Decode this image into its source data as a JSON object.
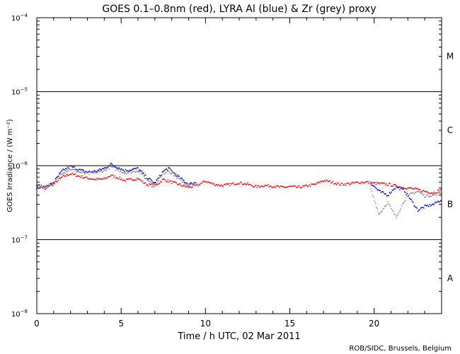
{
  "chart_data": {
    "type": "scatter",
    "title": "GOES 0.1–0.8nm (red), LYRA Al (blue) & Zr (grey) proxy",
    "xlabel": "Time / h UTC, 02 Mar 2011",
    "ylabel": "GOES Irradiance / (W m⁻²)",
    "xlim": [
      0,
      24
    ],
    "ylim": [
      1e-08,
      0.0001
    ],
    "yscale": "log",
    "x_ticks": [
      0,
      5,
      10,
      15,
      20
    ],
    "x_tick_labels": [
      "0",
      "5",
      "10",
      "15",
      "20"
    ],
    "y_ticks": [
      {
        "base": "10",
        "exp": "−8",
        "value": 1e-08
      },
      {
        "base": "10",
        "exp": "−7",
        "value": 1e-07
      },
      {
        "base": "10",
        "exp": "−6",
        "value": 1e-06
      },
      {
        "base": "10",
        "exp": "−5",
        "value": 1e-05
      },
      {
        "base": "10",
        "exp": "−4",
        "value": 0.0001
      }
    ],
    "flare_class_lines": [
      1e-07,
      1e-06,
      1e-05
    ],
    "flare_classes": [
      {
        "label": "A",
        "value": 3e-08
      },
      {
        "label": "B",
        "value": 3e-07
      },
      {
        "label": "C",
        "value": 3e-06
      },
      {
        "label": "M",
        "value": 3e-05
      }
    ],
    "series": [
      {
        "name": "GOES 0.1–0.8nm",
        "color": "#ff0000",
        "points": [
          [
            0,
            5e-07
          ],
          [
            0.5,
            5.2e-07
          ],
          [
            1,
            5.6e-07
          ],
          [
            1.5,
            7e-07
          ],
          [
            2,
            7.8e-07
          ],
          [
            2.5,
            7.2e-07
          ],
          [
            3,
            6.8e-07
          ],
          [
            3.5,
            6.5e-07
          ],
          [
            4,
            6.6e-07
          ],
          [
            4.4,
            7.4e-07
          ],
          [
            4.8,
            6.9e-07
          ],
          [
            5.2,
            6.3e-07
          ],
          [
            5.6,
            6.5e-07
          ],
          [
            6,
            6.7e-07
          ],
          [
            6.5,
            5.6e-07
          ],
          [
            7,
            5.3e-07
          ],
          [
            7.5,
            6.5e-07
          ],
          [
            8,
            6e-07
          ],
          [
            8.5,
            5.5e-07
          ],
          [
            9,
            5.1e-07
          ],
          [
            9.5,
            5.4e-07
          ],
          [
            10,
            6.2e-07
          ],
          [
            10.5,
            5.6e-07
          ],
          [
            11,
            5.4e-07
          ],
          [
            11.5,
            5.6e-07
          ],
          [
            12,
            5.9e-07
          ],
          [
            12.5,
            5.6e-07
          ],
          [
            13,
            5.2e-07
          ],
          [
            13.5,
            5.4e-07
          ],
          [
            14,
            5.3e-07
          ],
          [
            14.5,
            5.1e-07
          ],
          [
            15,
            5.2e-07
          ],
          [
            15.5,
            5.1e-07
          ],
          [
            16,
            5.3e-07
          ],
          [
            16.5,
            5.6e-07
          ],
          [
            17,
            6.3e-07
          ],
          [
            17.5,
            6e-07
          ],
          [
            18,
            5.6e-07
          ],
          [
            18.5,
            5.7e-07
          ],
          [
            19,
            5.9e-07
          ],
          [
            19.5,
            6e-07
          ],
          [
            20,
            5.8e-07
          ],
          [
            20.5,
            5.7e-07
          ],
          [
            21,
            5.5e-07
          ],
          [
            21.5,
            5.2e-07
          ],
          [
            22,
            5e-07
          ],
          [
            22.5,
            4.8e-07
          ],
          [
            23,
            4.5e-07
          ],
          [
            23.5,
            4.3e-07
          ],
          [
            24,
            4.7e-07
          ]
        ]
      },
      {
        "name": "LYRA Al proxy",
        "color": "#0000c8",
        "points": [
          [
            0,
            5.5e-07
          ],
          [
            0.5,
            5e-07
          ],
          [
            1,
            6e-07
          ],
          [
            1.5,
            8.5e-07
          ],
          [
            2,
            9.8e-07
          ],
          [
            2.5,
            8.8e-07
          ],
          [
            3,
            8.2e-07
          ],
          [
            3.5,
            8.4e-07
          ],
          [
            4,
            9.2e-07
          ],
          [
            4.4,
            1.05e-06
          ],
          [
            4.8,
            9.5e-07
          ],
          [
            5.2,
            8.6e-07
          ],
          [
            5.6,
            8.8e-07
          ],
          [
            6,
            9.2e-07
          ],
          [
            6.5,
            7e-07
          ],
          [
            7,
            5.8e-07
          ],
          [
            7.5,
            8.4e-07
          ],
          [
            7.8,
            9.2e-07
          ],
          [
            8.5,
            6.8e-07
          ],
          [
            9,
            5.6e-07
          ],
          [
            9.5,
            6e-07
          ],
          [
            19.8,
            5.8e-07
          ],
          [
            20.3,
            4.5e-07
          ],
          [
            20.8,
            4e-07
          ],
          [
            21.3,
            5.2e-07
          ],
          [
            21.8,
            4.6e-07
          ],
          [
            22.2,
            3.4e-07
          ],
          [
            22.6,
            2.5e-07
          ],
          [
            23,
            2.8e-07
          ],
          [
            23.5,
            3e-07
          ],
          [
            24,
            3.5e-07
          ]
        ]
      },
      {
        "name": "LYRA Zr proxy",
        "color": "#888888",
        "points": [
          [
            0,
            5.3e-07
          ],
          [
            0.5,
            5e-07
          ],
          [
            1,
            5.8e-07
          ],
          [
            1.5,
            8e-07
          ],
          [
            2,
            9e-07
          ],
          [
            2.5,
            8.2e-07
          ],
          [
            3,
            7.8e-07
          ],
          [
            3.5,
            8e-07
          ],
          [
            4,
            8.6e-07
          ],
          [
            4.4,
            9.6e-07
          ],
          [
            4.8,
            8.8e-07
          ],
          [
            5.2,
            8e-07
          ],
          [
            5.6,
            8.2e-07
          ],
          [
            6,
            8.6e-07
          ],
          [
            6.5,
            6.6e-07
          ],
          [
            7,
            5.6e-07
          ],
          [
            7.5,
            7.8e-07
          ],
          [
            7.8,
            8.6e-07
          ],
          [
            8.5,
            6.4e-07
          ],
          [
            9,
            5.4e-07
          ],
          [
            9.5,
            5.8e-07
          ],
          [
            19.8,
            4.8e-07
          ],
          [
            20.3,
            2.2e-07
          ],
          [
            20.8,
            3.2e-07
          ],
          [
            21.3,
            2e-07
          ],
          [
            21.8,
            3.4e-07
          ],
          [
            22.2,
            4.2e-07
          ],
          [
            22.6,
            4.5e-07
          ],
          [
            23,
            3.9e-07
          ],
          [
            23.5,
            4e-07
          ],
          [
            24,
            4.3e-07
          ]
        ]
      }
    ]
  },
  "credit": "ROB/SIDC, Brussels, Belgium"
}
